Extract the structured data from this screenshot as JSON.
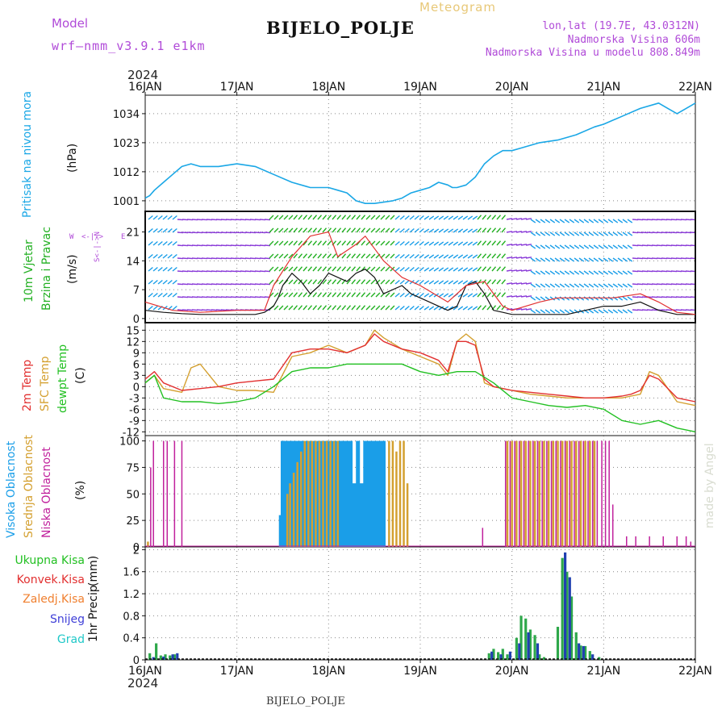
{
  "header": {
    "model_label": "Model",
    "model_name": "wrf–nmm_v3.9.1 e1km",
    "meteogram_label": "Meteogram",
    "station": "BIJELO_POLJE",
    "lonlat": "lon,lat (19.7E, 43.0312N)",
    "altitude": "Nadmorska Visina 606m",
    "model_altitude": "Nadmorska Visina u modelu 808.849m",
    "year_top": "2024",
    "year_bottom": "2024",
    "footer_station": "BIJELO_POLJE",
    "watermark": "made by Angel"
  },
  "colors": {
    "pressure": "#1aa7e6",
    "wind_green": "#22b022",
    "red": "#e23030",
    "orange": "#d4a030",
    "green": "#22c022",
    "blue": "#1a9ee8",
    "magenta": "#c0209c",
    "purple": "#8a3ad8",
    "navy": "#2040b0",
    "grid": "#888888"
  },
  "chart_data": [
    {
      "id": "pressure",
      "type": "line",
      "ylabel_lines": [
        "Pritisak na nivou mora"
      ],
      "unit": "(hPa)",
      "x_categories": [
        "16JAN",
        "17JAN",
        "18JAN",
        "19JAN",
        "20JAN",
        "21JAN",
        "22JAN"
      ],
      "ylim": [
        997,
        1041
      ],
      "yticks": [
        1001,
        1012,
        1023,
        1034
      ],
      "x": [
        0,
        0.05,
        0.1,
        0.2,
        0.3,
        0.4,
        0.5,
        0.6,
        0.8,
        1.0,
        1.2,
        1.4,
        1.6,
        1.8,
        2.0,
        2.1,
        2.2,
        2.3,
        2.4,
        2.5,
        2.7,
        2.8,
        2.9,
        3.0,
        3.1,
        3.2,
        3.3,
        3.35,
        3.4,
        3.5,
        3.6,
        3.7,
        3.8,
        3.9,
        4.0,
        4.1,
        4.3,
        4.5,
        4.7,
        4.9,
        5.0,
        5.2,
        5.4,
        5.6,
        5.7,
        5.8,
        5.9,
        6.0
      ],
      "y": [
        1002,
        1003,
        1005,
        1008,
        1011,
        1014,
        1015,
        1014,
        1014,
        1015,
        1014,
        1011,
        1008,
        1006,
        1006,
        1005,
        1004,
        1001,
        1000,
        1000,
        1001,
        1002,
        1004,
        1005,
        1006,
        1008,
        1007,
        1006,
        1006,
        1007,
        1010,
        1015,
        1018,
        1020,
        1020,
        1021,
        1023,
        1024,
        1026,
        1029,
        1030,
        1033,
        1036,
        1038,
        1036,
        1034,
        1036,
        1038
      ]
    },
    {
      "id": "wind",
      "type": "line",
      "ylabel_lines": [
        "10m Vjetar",
        "Brzina i Pravac"
      ],
      "unit": "(m/s)",
      "compass": [
        "W",
        "<-|->",
        "E",
        "S<-|->N"
      ],
      "ylim": [
        -1,
        26
      ],
      "yticks": [
        0,
        7,
        14,
        21
      ],
      "series": [
        {
          "name": "",
          "x": [
            0,
            0.2,
            0.4,
            0.6,
            0.8,
            1.0,
            1.2,
            1.3,
            1.4,
            1.45,
            1.5,
            1.6,
            1.7,
            1.8,
            1.9,
            2.0,
            2.1,
            2.2,
            2.3,
            2.4,
            2.5,
            2.6,
            2.7,
            2.8,
            2.9,
            3.0,
            3.1,
            3.2,
            3.3,
            3.4,
            3.5,
            3.6,
            3.7,
            3.8,
            3.9,
            4.0,
            4.2,
            4.4,
            4.6,
            4.8,
            5.0,
            5.2,
            5.4,
            5.6,
            5.8,
            6.0
          ],
          "y": [
            2,
            1.5,
            1.2,
            1,
            1,
            1,
            1,
            1.5,
            3,
            5,
            8,
            11,
            9,
            6,
            8,
            11,
            10,
            9,
            11,
            12,
            10,
            6,
            7,
            8,
            6,
            5,
            4,
            3,
            2,
            3,
            8,
            9,
            6,
            2,
            1.5,
            1,
            1,
            1,
            1,
            2,
            3,
            3,
            4,
            2,
            1,
            1
          ]
        },
        {
          "name": "",
          "x": [
            0,
            0.3,
            0.6,
            1.0,
            1.3,
            1.4,
            1.6,
            1.8,
            2.0,
            2.1,
            2.3,
            2.4,
            2.6,
            2.8,
            3.0,
            3.3,
            3.5,
            3.7,
            3.9,
            4.0,
            4.3,
            4.5,
            4.8,
            5.1,
            5.4,
            5.6,
            5.8,
            6.0
          ],
          "y": [
            4,
            2,
            1.5,
            2,
            2,
            8,
            15,
            20,
            21,
            15,
            18,
            20,
            14,
            10,
            8,
            4,
            8,
            9,
            3,
            2,
            4,
            5,
            5,
            5,
            6,
            4,
            1.5,
            1
          ]
        }
      ]
    },
    {
      "id": "temperature",
      "type": "line",
      "ylabel_lines": [
        "2m Temp",
        "SFC Temp",
        "dewpt Temp"
      ],
      "unit": "(C)",
      "ylim": [
        -13,
        17
      ],
      "yticks": [
        -12,
        -9,
        -6,
        -3,
        0,
        3,
        6,
        9,
        12,
        15
      ],
      "series": [
        {
          "name": "2m Temp",
          "x": [
            0,
            0.1,
            0.2,
            0.4,
            0.6,
            0.8,
            1.0,
            1.2,
            1.4,
            1.6,
            1.8,
            2.0,
            2.2,
            2.4,
            2.5,
            2.6,
            2.8,
            3.0,
            3.2,
            3.3,
            3.4,
            3.5,
            3.6,
            3.7,
            3.8,
            4.0,
            4.2,
            4.4,
            4.6,
            4.8,
            5.0,
            5.2,
            5.3,
            5.4,
            5.5,
            5.6,
            5.8,
            6.0
          ],
          "y": [
            2,
            4,
            1,
            -1,
            -0.5,
            0,
            1,
            1.5,
            2,
            9,
            10,
            10,
            9,
            11,
            14,
            12,
            10,
            9,
            7,
            4,
            12,
            12,
            11,
            2,
            0,
            -1,
            -1.5,
            -2,
            -2.5,
            -3,
            -3,
            -2.5,
            -2,
            -1,
            3,
            2,
            -3,
            -4
          ]
        },
        {
          "name": "SFC Temp",
          "x": [
            0,
            0.1,
            0.2,
            0.4,
            0.5,
            0.6,
            0.8,
            1.0,
            1.2,
            1.4,
            1.6,
            1.8,
            2.0,
            2.2,
            2.4,
            2.5,
            2.6,
            2.8,
            3.0,
            3.2,
            3.3,
            3.4,
            3.5,
            3.6,
            3.7,
            3.8,
            4.0,
            4.2,
            4.4,
            4.6,
            4.8,
            5.0,
            5.2,
            5.3,
            5.4,
            5.5,
            5.6,
            5.8,
            6.0
          ],
          "y": [
            1,
            3,
            -0.5,
            -1.5,
            5,
            6,
            0,
            -1,
            -1,
            -1.5,
            8,
            9,
            11,
            9,
            11,
            15,
            13,
            10,
            8,
            6,
            3,
            12,
            14,
            12,
            1,
            0,
            -1,
            -2,
            -2.5,
            -3,
            -3,
            -3,
            -3,
            -2.5,
            -2,
            4,
            3,
            -4,
            -5
          ]
        },
        {
          "name": "dewpt Temp",
          "x": [
            0,
            0.1,
            0.2,
            0.4,
            0.6,
            0.8,
            1.0,
            1.2,
            1.4,
            1.6,
            1.8,
            2.0,
            2.2,
            2.4,
            2.6,
            2.8,
            3.0,
            3.2,
            3.4,
            3.6,
            3.8,
            4.0,
            4.2,
            4.4,
            4.6,
            4.8,
            5.0,
            5.2,
            5.4,
            5.6,
            5.8,
            6.0
          ],
          "y": [
            1,
            3,
            -3,
            -4,
            -4,
            -4.5,
            -4,
            -3,
            0,
            4,
            5,
            5,
            6,
            6,
            6,
            6,
            4,
            3,
            4,
            4,
            1,
            -3,
            -4,
            -5,
            -5.5,
            -5,
            -6,
            -9,
            -10,
            -9,
            -11,
            -12
          ]
        }
      ]
    },
    {
      "id": "clouds",
      "type": "bar",
      "ylabel_lines": [
        "Visoka Oblacnost",
        "Srednja Oblacnost",
        "Niska Oblacnost"
      ],
      "unit": "(%)",
      "ylim": [
        0,
        105
      ],
      "yticks": [
        0,
        25,
        50,
        75,
        100
      ],
      "series": [
        {
          "name": "Visoka Oblacnost",
          "x": [
            1.48,
            1.5,
            1.52,
            1.56,
            1.6,
            1.64,
            1.68,
            1.72,
            1.76,
            1.8,
            1.84,
            1.88,
            1.92,
            1.96,
            2.0,
            2.04,
            2.08,
            2.12,
            2.16,
            2.2,
            2.24,
            2.28,
            2.32,
            2.36,
            2.4,
            2.44,
            2.48,
            2.52,
            2.56,
            2.6
          ],
          "y": [
            30,
            100,
            100,
            100,
            100,
            100,
            100,
            100,
            100,
            100,
            100,
            100,
            100,
            100,
            100,
            100,
            100,
            100,
            100,
            100,
            100,
            60,
            100,
            60,
            100,
            100,
            100,
            100,
            100,
            100
          ]
        },
        {
          "name": "Srednja Oblacnost",
          "x": [
            0.03,
            1.55,
            1.58,
            1.62,
            1.66,
            1.7,
            1.74,
            1.78,
            1.82,
            1.86,
            1.9,
            1.94,
            1.98,
            2.02,
            2.06,
            2.1,
            2.66,
            2.7,
            2.74,
            2.78,
            2.82,
            2.86,
            3.95,
            4.0,
            4.05,
            4.1,
            4.15,
            4.2,
            4.25,
            4.3,
            4.35,
            4.4,
            4.45,
            4.5,
            4.55,
            4.6,
            4.65,
            4.7,
            4.75,
            4.8,
            4.85,
            4.9
          ],
          "y": [
            5,
            50,
            60,
            70,
            80,
            90,
            100,
            100,
            100,
            100,
            100,
            100,
            100,
            100,
            100,
            100,
            100,
            100,
            90,
            100,
            100,
            60,
            100,
            100,
            100,
            100,
            100,
            100,
            100,
            100,
            100,
            100,
            100,
            100,
            100,
            100,
            100,
            100,
            100,
            100,
            100,
            100
          ]
        },
        {
          "name": "Niska Oblacnost",
          "x": [
            0.06,
            0.09,
            0.2,
            0.24,
            0.32,
            0.4,
            3.68,
            3.93,
            3.98,
            4.03,
            4.08,
            4.13,
            4.18,
            4.23,
            4.28,
            4.33,
            4.38,
            4.43,
            4.48,
            4.53,
            4.58,
            4.63,
            4.68,
            4.73,
            4.78,
            4.83,
            4.88,
            4.93,
            4.98,
            5.02,
            5.06,
            5.1,
            5.25,
            5.35,
            5.5,
            5.65,
            5.8,
            5.9,
            5.95
          ],
          "y": [
            75,
            100,
            100,
            100,
            100,
            100,
            18,
            100,
            100,
            100,
            100,
            100,
            100,
            100,
            100,
            100,
            100,
            100,
            100,
            100,
            100,
            100,
            100,
            100,
            100,
            100,
            100,
            100,
            100,
            100,
            100,
            40,
            10,
            10,
            10,
            10,
            10,
            10,
            5
          ]
        }
      ]
    },
    {
      "id": "precip",
      "type": "bar",
      "ylabel_lines": [
        "1hr Precip"
      ],
      "unit": "(mm)",
      "legend": [
        "Ukupna Kisa",
        "Konvek.Kisa",
        "Zaledj.Kisa",
        "Snijeg",
        "Grad"
      ],
      "x_categories": [
        "16JAN",
        "17JAN",
        "18JAN",
        "19JAN",
        "20JAN",
        "21JAN",
        "22JAN"
      ],
      "ylim": [
        0,
        2.05
      ],
      "yticks": [
        0,
        0.4,
        0.8,
        1.2,
        1.6,
        2
      ],
      "ytick_labels": [
        "0",
        "0.4",
        "0.8",
        "1.2",
        "1.6",
        "2"
      ],
      "series": [
        {
          "name": "Ukupna Kisa",
          "x": [
            0.05,
            0.12,
            0.17,
            0.22,
            0.27,
            0.32,
            3.75,
            3.8,
            3.85,
            3.9,
            3.95,
            4.05,
            4.1,
            4.15,
            4.2,
            4.25,
            4.3,
            4.35,
            4.5,
            4.55,
            4.6,
            4.65,
            4.7,
            4.75,
            4.8,
            4.85,
            4.95
          ],
          "y": [
            0.12,
            0.3,
            0.08,
            0.1,
            0.08,
            0.1,
            0.12,
            0.2,
            0.14,
            0.2,
            0.1,
            0.4,
            0.8,
            0.75,
            0.55,
            0.45,
            0.1,
            0.05,
            0.6,
            1.85,
            1.6,
            1.15,
            0.5,
            0.26,
            0.25,
            0.16,
            0.05
          ]
        },
        {
          "name": "Snijeg",
          "x": [
            0.09,
            0.2,
            0.3,
            0.35,
            3.78,
            3.88,
            3.98,
            4.08,
            4.18,
            4.28,
            4.58,
            4.63,
            4.73,
            4.78,
            4.88
          ],
          "y": [
            0.05,
            0.06,
            0.1,
            0.12,
            0.15,
            0.1,
            0.15,
            0.3,
            0.5,
            0.3,
            1.95,
            1.5,
            0.3,
            0.25,
            0.1
          ]
        }
      ]
    }
  ]
}
